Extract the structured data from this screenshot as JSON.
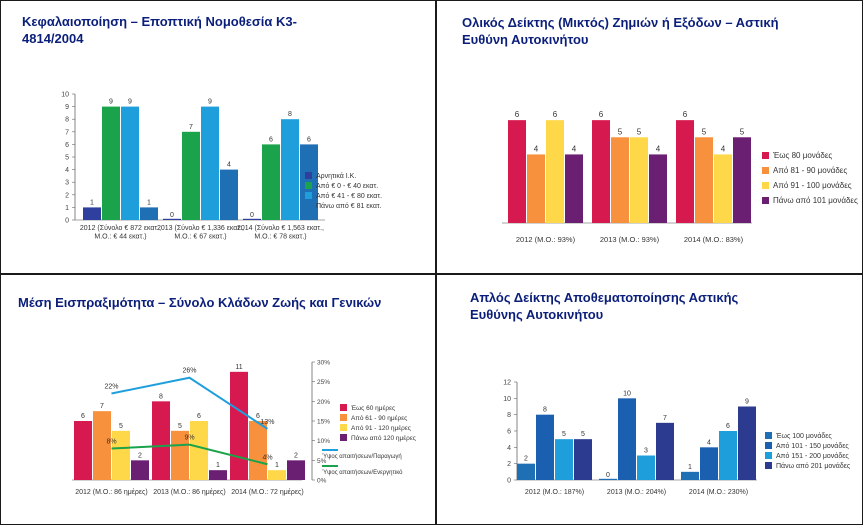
{
  "titles": {
    "q1": "Κεφαλαιοποίηση – Εποπτική Νομοθεσία Κ3-4814/2004",
    "q2": "Ολικός Δείκτης (Μικτός) Ζημιών ή Εξόδων – Αστική Ευθύνη Αυτοκινήτου",
    "q3": "Μέση Εισπραξιμότητα – Σύνολο Κλάδων Ζωής και Γενικών",
    "q4": "Απλός Δείκτης Αποθεματοποίησης Αστικής Ευθύνης Αυτοκινήτου"
  },
  "chart_data": [
    {
      "type": "bar",
      "categories": [
        [
          "2012 (Σύνολο € 872 εκατ.,",
          "Μ.Ο.: € 44 εκατ.)"
        ],
        [
          "2013 (Σύνολο € 1,336 εκατ.,",
          "Μ.Ο.: € 67 εκατ.)"
        ],
        [
          "2014 (Σύνολο € 1,563 εκατ.,",
          "Μ.Ο.: € 78 εκατ.)"
        ]
      ],
      "series": [
        {
          "name": "Αρνητικά Ι.Κ.",
          "values": [
            1,
            0,
            0
          ],
          "color": "#2f3f9e"
        },
        {
          "name": "Από € 0 - € 40 εκατ.",
          "values": [
            9,
            7,
            6
          ],
          "color": "#1aa34a"
        },
        {
          "name": "Από € 41 - € 80 εκατ.",
          "values": [
            9,
            9,
            8
          ],
          "color": "#1e9fdc"
        },
        {
          "name": "Πάνω από € 81 εκατ.",
          "values": [
            1,
            4,
            6
          ],
          "color": "#1f6fb5"
        }
      ],
      "yticks": [
        "0",
        "1",
        "2",
        "3",
        "4",
        "5",
        "6",
        "7",
        "8",
        "9",
        "10"
      ],
      "ylim": [
        0,
        10
      ],
      "legend": "right"
    },
    {
      "type": "bar",
      "categories": [
        [
          "2012 (Μ.Ο.: 93%)"
        ],
        [
          "2013 (Μ.Ο.: 93%)"
        ],
        [
          "2014 (Μ.Ο.: 83%)"
        ]
      ],
      "series": [
        {
          "name": "Έως 80 μονάδες",
          "values": [
            6,
            6,
            6
          ],
          "color": "#d6194f"
        },
        {
          "name": "Από 81 - 90 μονάδες",
          "values": [
            4,
            5,
            5
          ],
          "color": "#f7913d"
        },
        {
          "name": "Από 91 - 100 μονάδες",
          "values": [
            6,
            5,
            4
          ],
          "color": "#ffd84a"
        },
        {
          "name": "Πάνω από 101 μονάδες",
          "values": [
            4,
            4,
            5
          ],
          "color": "#6b1f73"
        }
      ],
      "ylim": [
        0,
        7
      ],
      "legend": "right"
    },
    {
      "type": "bar",
      "categories": [
        [
          "2012 (Μ.Ο.: 86 ημέρες)"
        ],
        [
          "2013 (Μ.Ο.: 86 ημέρες)"
        ],
        [
          "2014 (Μ.Ο.: 72 ημέρες)"
        ]
      ],
      "series": [
        {
          "name": "Έως 60 ημέρες",
          "values": [
            6,
            8,
            11
          ],
          "color": "#d6194f"
        },
        {
          "name": "Από 61 - 90 ημέρες",
          "values": [
            7,
            5,
            6
          ],
          "color": "#f7913d"
        },
        {
          "name": "Από 91 - 120 ημέρες",
          "values": [
            5,
            6,
            1
          ],
          "color": "#ffd84a"
        },
        {
          "name": "Πάνω από 120 ημέρες",
          "values": [
            2,
            1,
            2
          ],
          "color": "#6b1f73"
        }
      ],
      "lines": [
        {
          "name": "Ύψος απαιτήσεων/Παραγωγή",
          "values": [
            22,
            26,
            13
          ],
          "labels": [
            "22%",
            "26%",
            "13%"
          ],
          "color": "#1e9fdc"
        },
        {
          "name": "Ύψος απαιτήσεων/Ενεργητικό",
          "values": [
            8,
            9,
            4
          ],
          "labels": [
            "8%",
            "9%",
            "4%"
          ],
          "color": "#1aa34a"
        }
      ],
      "ylim": [
        0,
        12
      ],
      "y2ticks": [
        "0%",
        "5%",
        "10%",
        "15%",
        "20%",
        "25%",
        "30%"
      ],
      "y2lim": [
        0,
        30
      ],
      "legend": "right"
    },
    {
      "type": "bar",
      "categories": [
        [
          "2012 (Μ.Ο.: 187%)"
        ],
        [
          "2013 (Μ.Ο.: 204%)"
        ],
        [
          "2014 (Μ.Ο.: 230%)"
        ]
      ],
      "series": [
        {
          "name": "Έως 100 μονάδες",
          "values": [
            2,
            0,
            1
          ],
          "color": "#1f6fb5"
        },
        {
          "name": "Από 101 - 150 μονάδες",
          "values": [
            8,
            10,
            4
          ],
          "color": "#1a5fb0"
        },
        {
          "name": "Από 151 - 200 μονάδες",
          "values": [
            5,
            3,
            6
          ],
          "color": "#1e9fdc"
        },
        {
          "name": "Πάνω από 201 μονάδες",
          "values": [
            5,
            7,
            9
          ],
          "color": "#2c3a8f"
        }
      ],
      "yticks": [
        "0",
        "2",
        "4",
        "6",
        "8",
        "10",
        "12"
      ],
      "ylim": [
        0,
        12
      ],
      "legend": "right"
    }
  ]
}
